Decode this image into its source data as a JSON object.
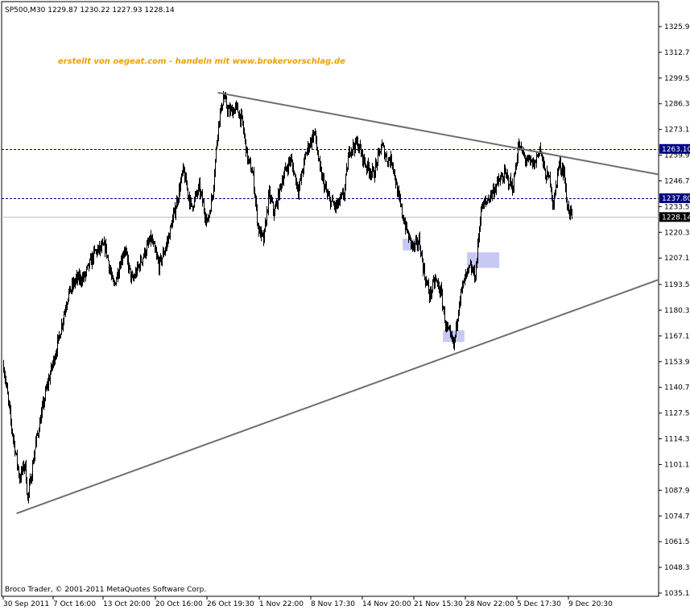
{
  "header": {
    "info": "SP500,M30   1229.87  1230.22  1227.93  1228.14",
    "watermark": "erstellt von oegeat.com - handeln mit www.brokervorschlag.de"
  },
  "footer": {
    "copyright": "Broco Trader, © 2001-2011 MetaQuotes Software Corp."
  },
  "colors": {
    "background": "#ffffff",
    "candles": "#000000",
    "trendline": "#6e6e6e",
    "level_line": "#000080",
    "current_price_line": "#c0c0c0",
    "highlight_box": "#c8c8f5",
    "watermark": "#f0a000"
  },
  "chart_data": {
    "type": "line",
    "title": "SP500,M30",
    "ohlc_last": {
      "open": 1229.87,
      "high": 1230.22,
      "low": 1227.93,
      "close": 1228.14
    },
    "x_tick_labels": [
      "30 Sep 2011",
      "7 Oct 16:00",
      "13 Oct 20:00",
      "20 Oct 16:00",
      "26 Oct 19:30",
      "1 Nov 22:00",
      "8 Nov 17:30",
      "14 Nov 20:00",
      "21 Nov 15:30",
      "28 Nov 22:00",
      "5 Dec 17:30",
      "9 Dec 20:30"
    ],
    "y_tick_labels": [
      "1325.90",
      "1312.70",
      "1299.50",
      "1286.30",
      "1273.10",
      "1259.90",
      "1246.70",
      "1233.50",
      "1220.30",
      "1207.10",
      "1193.50",
      "1180.30",
      "1167.10",
      "1153.90",
      "1140.70",
      "1127.50",
      "1114.30",
      "1101.10",
      "1087.90",
      "1074.70",
      "1061.50",
      "1048.30",
      "1035.10"
    ],
    "ylim": [
      1035.1,
      1325.9
    ],
    "price_path": [
      {
        "x": 0,
        "y": 1152
      },
      {
        "x": 3,
        "y": 1120
      },
      {
        "x": 6,
        "y": 1094
      },
      {
        "x": 8,
        "y": 1102
      },
      {
        "x": 9,
        "y": 1083
      },
      {
        "x": 12,
        "y": 1112
      },
      {
        "x": 16,
        "y": 1140
      },
      {
        "x": 20,
        "y": 1162
      },
      {
        "x": 24,
        "y": 1188
      },
      {
        "x": 27,
        "y": 1196
      },
      {
        "x": 30,
        "y": 1197
      },
      {
        "x": 34,
        "y": 1210
      },
      {
        "x": 38,
        "y": 1213
      },
      {
        "x": 41,
        "y": 1192
      },
      {
        "x": 45,
        "y": 1212
      },
      {
        "x": 48,
        "y": 1195
      },
      {
        "x": 52,
        "y": 1208
      },
      {
        "x": 55,
        "y": 1217
      },
      {
        "x": 58,
        "y": 1203
      },
      {
        "x": 61,
        "y": 1215
      },
      {
        "x": 64,
        "y": 1232
      },
      {
        "x": 67,
        "y": 1252
      },
      {
        "x": 70,
        "y": 1233
      },
      {
        "x": 73,
        "y": 1243
      },
      {
        "x": 76,
        "y": 1225
      },
      {
        "x": 78,
        "y": 1240
      },
      {
        "x": 80,
        "y": 1275
      },
      {
        "x": 82,
        "y": 1290
      },
      {
        "x": 84,
        "y": 1282
      },
      {
        "x": 87,
        "y": 1284
      },
      {
        "x": 89,
        "y": 1277
      },
      {
        "x": 91,
        "y": 1258
      },
      {
        "x": 93,
        "y": 1250
      },
      {
        "x": 95,
        "y": 1222
      },
      {
        "x": 97,
        "y": 1216
      },
      {
        "x": 99,
        "y": 1240
      },
      {
        "x": 101,
        "y": 1230
      },
      {
        "x": 104,
        "y": 1248
      },
      {
        "x": 107,
        "y": 1258
      },
      {
        "x": 110,
        "y": 1242
      },
      {
        "x": 113,
        "y": 1262
      },
      {
        "x": 116,
        "y": 1272
      },
      {
        "x": 118,
        "y": 1252
      },
      {
        "x": 121,
        "y": 1238
      },
      {
        "x": 124,
        "y": 1233
      },
      {
        "x": 127,
        "y": 1240
      },
      {
        "x": 129,
        "y": 1263
      },
      {
        "x": 132,
        "y": 1266
      },
      {
        "x": 135,
        "y": 1255
      },
      {
        "x": 138,
        "y": 1250
      },
      {
        "x": 141,
        "y": 1265
      },
      {
        "x": 143,
        "y": 1258
      },
      {
        "x": 145,
        "y": 1257
      },
      {
        "x": 147,
        "y": 1240
      },
      {
        "x": 149,
        "y": 1228
      },
      {
        "x": 151,
        "y": 1218
      },
      {
        "x": 153,
        "y": 1212
      },
      {
        "x": 155,
        "y": 1216
      },
      {
        "x": 157,
        "y": 1198
      },
      {
        "x": 159,
        "y": 1188
      },
      {
        "x": 161,
        "y": 1196
      },
      {
        "x": 163,
        "y": 1190
      },
      {
        "x": 165,
        "y": 1172
      },
      {
        "x": 167,
        "y": 1165
      },
      {
        "x": 168,
        "y": 1162
      },
      {
        "x": 170,
        "y": 1186
      },
      {
        "x": 172,
        "y": 1196
      },
      {
        "x": 174,
        "y": 1202
      },
      {
        "x": 176,
        "y": 1198
      },
      {
        "x": 178,
        "y": 1232
      },
      {
        "x": 181,
        "y": 1238
      },
      {
        "x": 184,
        "y": 1245
      },
      {
        "x": 187,
        "y": 1250
      },
      {
        "x": 190,
        "y": 1243
      },
      {
        "x": 192,
        "y": 1265
      },
      {
        "x": 195,
        "y": 1257
      },
      {
        "x": 198,
        "y": 1255
      },
      {
        "x": 200,
        "y": 1264
      },
      {
        "x": 202,
        "y": 1250
      },
      {
        "x": 204,
        "y": 1247
      },
      {
        "x": 205,
        "y": 1233
      },
      {
        "x": 207,
        "y": 1255
      },
      {
        "x": 209,
        "y": 1252
      },
      {
        "x": 210,
        "y": 1235
      },
      {
        "x": 212,
        "y": 1228
      }
    ],
    "horizontal_levels": [
      {
        "label": "1263.10",
        "value": 1263.1,
        "style": "dashed"
      },
      {
        "label": "1237.80",
        "value": 1237.8,
        "style": "dashed"
      },
      {
        "label": "1228.14",
        "value": 1228.14,
        "style": "current"
      }
    ],
    "trendlines": [
      {
        "from": {
          "x": 80,
          "y": 1292
        },
        "to": {
          "x": 242,
          "y": 1250
        }
      },
      {
        "from": {
          "x": 5,
          "y": 1076
        },
        "to": {
          "x": 242,
          "y": 1196
        }
      }
    ],
    "highlight_zones": [
      {
        "x0": 149,
        "x1": 155,
        "y0": 1211,
        "y1": 1217
      },
      {
        "x0": 173,
        "x1": 185,
        "y0": 1202,
        "y1": 1210
      },
      {
        "x0": 164,
        "x1": 172,
        "y0": 1164,
        "y1": 1170
      }
    ],
    "grid": false,
    "legend": "none"
  }
}
